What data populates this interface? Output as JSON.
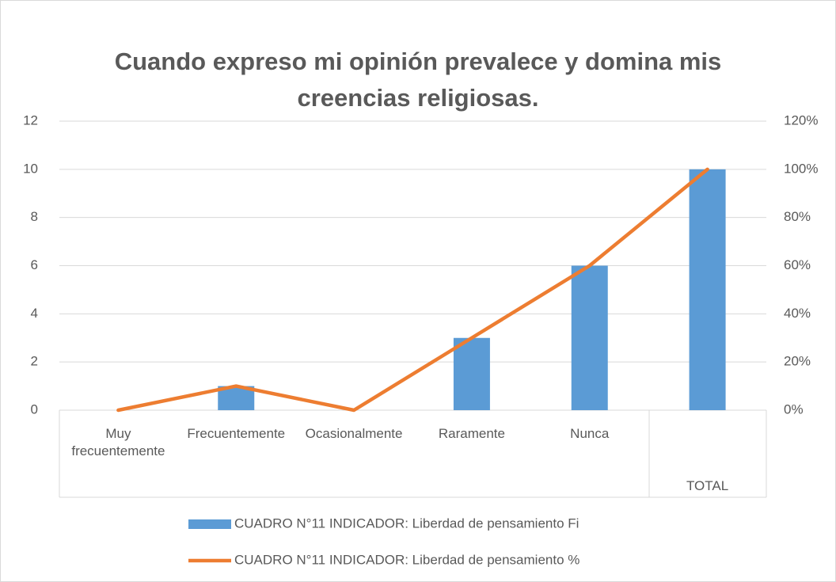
{
  "chart_data": {
    "type": "bar",
    "title": "Cuando expreso mi opinión prevalece y domina mis creencias religiosas.",
    "categories": [
      "Muy frecuentemente",
      "Frecuentemente",
      "Ocasionalmente",
      "Raramente",
      "Nunca",
      "TOTAL"
    ],
    "series": [
      {
        "name": "CUADRO N°11 INDICADOR: Liberdad de pensamiento Fi",
        "type": "bar",
        "color": "#5b9bd5",
        "values": [
          0,
          1,
          0,
          3,
          6,
          10
        ]
      },
      {
        "name": "CUADRO N°11 INDICADOR: Liberdad de pensamiento %",
        "type": "line",
        "axis": "y2",
        "color": "#ed7d31",
        "values": [
          0,
          10,
          0,
          30,
          60,
          100
        ]
      }
    ],
    "ylim": [
      0,
      12
    ],
    "yticks": [
      0,
      2,
      4,
      6,
      8,
      10,
      12
    ],
    "y2lim": [
      0,
      120
    ],
    "y2ticks": [
      {
        "value": 0,
        "label": "0%"
      },
      {
        "value": 20,
        "label": "20%"
      },
      {
        "value": 40,
        "label": "40%"
      },
      {
        "value": 60,
        "label": "60%"
      },
      {
        "value": 80,
        "label": "80%"
      },
      {
        "value": 100,
        "label": "100%"
      },
      {
        "value": 120,
        "label": "120%"
      }
    ],
    "grid": true,
    "legend": "bottom"
  }
}
